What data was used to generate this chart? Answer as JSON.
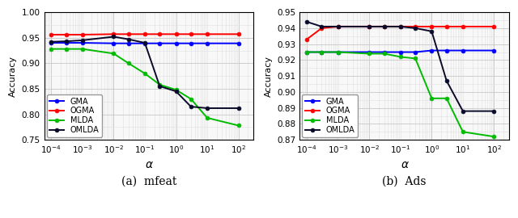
{
  "alpha_values": [
    0.0001,
    0.0003,
    0.001,
    0.01,
    0.03,
    0.1,
    0.3,
    1.0,
    3.0,
    10.0,
    100.0
  ],
  "mfeat": {
    "GMA": [
      0.94,
      0.94,
      0.94,
      0.939,
      0.939,
      0.939,
      0.939,
      0.939,
      0.939,
      0.939,
      0.939
    ],
    "OGMA": [
      0.956,
      0.956,
      0.956,
      0.957,
      0.957,
      0.957,
      0.957,
      0.957,
      0.957,
      0.957,
      0.957
    ],
    "MLDA": [
      0.928,
      0.928,
      0.928,
      0.919,
      0.9,
      0.88,
      0.858,
      0.848,
      0.83,
      0.793,
      0.778
    ],
    "OMLDA": [
      0.942,
      0.943,
      0.945,
      0.952,
      0.947,
      0.94,
      0.855,
      0.845,
      0.815,
      0.812,
      0.812
    ],
    "ylim": [
      0.75,
      1.0
    ],
    "yticks": [
      0.75,
      0.8,
      0.85,
      0.9,
      0.95,
      1.0
    ],
    "title": "(a)  mfeat"
  },
  "ads": {
    "GMA": [
      0.925,
      0.925,
      0.925,
      0.925,
      0.925,
      0.925,
      0.925,
      0.926,
      0.926,
      0.926,
      0.926
    ],
    "OGMA": [
      0.933,
      0.94,
      0.941,
      0.941,
      0.941,
      0.941,
      0.941,
      0.941,
      0.941,
      0.941,
      0.941
    ],
    "MLDA": [
      0.925,
      0.925,
      0.925,
      0.924,
      0.924,
      0.922,
      0.921,
      0.896,
      0.896,
      0.875,
      0.872
    ],
    "OMLDA": [
      0.944,
      0.941,
      0.941,
      0.941,
      0.941,
      0.941,
      0.94,
      0.938,
      0.907,
      0.888,
      0.888
    ],
    "ylim": [
      0.87,
      0.95
    ],
    "yticks": [
      0.87,
      0.88,
      0.89,
      0.9,
      0.91,
      0.92,
      0.93,
      0.94,
      0.95
    ],
    "title": "(b)  Ads"
  },
  "colors": {
    "GMA": "#0000ff",
    "OGMA": "#ff0000",
    "MLDA": "#00bb00",
    "OMLDA": "#0a0a2a"
  },
  "xlabel": "α",
  "ylabel": "Accuracy",
  "bg_color": "#f8f8f8"
}
